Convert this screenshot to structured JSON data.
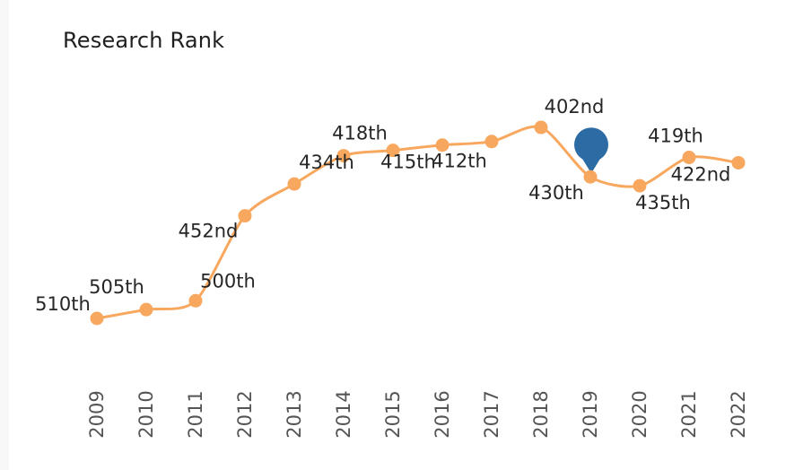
{
  "page": {
    "background": "#ffffff",
    "left_gutter_color": "#f8f8f8"
  },
  "chart_data": {
    "type": "line",
    "title": "Research Rank",
    "xlabel": "",
    "ylabel": "",
    "categories": [
      "2009",
      "2010",
      "2011",
      "2012",
      "2013",
      "2014",
      "2015",
      "2016",
      "2017",
      "2018",
      "2019",
      "2020",
      "2021",
      "2022"
    ],
    "values": [
      510,
      505,
      500,
      452,
      434,
      418,
      415,
      412,
      410,
      402,
      430,
      435,
      419,
      422
    ],
    "points": [
      {
        "year": "2009",
        "value": 510,
        "label": "510th",
        "label_offset": [
          -38,
          -16
        ],
        "pin": false
      },
      {
        "year": "2010",
        "value": 505,
        "label": "505th",
        "label_offset": [
          -33,
          -25
        ],
        "pin": false
      },
      {
        "year": "2011",
        "value": 500,
        "label": "500th",
        "label_offset": [
          36,
          -22
        ],
        "pin": false
      },
      {
        "year": "2012",
        "value": 452,
        "label": "452nd",
        "label_offset": [
          -41,
          17
        ],
        "pin": false
      },
      {
        "year": "2013",
        "value": 434,
        "label": "434th",
        "label_offset": [
          36,
          -24
        ],
        "pin": false
      },
      {
        "year": "2014",
        "value": 418,
        "label": "418th",
        "label_offset": [
          18,
          -25
        ],
        "pin": false
      },
      {
        "year": "2015",
        "value": 415,
        "label": "415th",
        "label_offset": [
          17,
          13
        ],
        "pin": false
      },
      {
        "year": "2016",
        "value": 412,
        "label": "412th",
        "label_offset": [
          19,
          18
        ],
        "pin": false
      },
      {
        "year": "2017",
        "value": 410,
        "label": "",
        "label_offset": [
          0,
          0
        ],
        "pin": false
      },
      {
        "year": "2018",
        "value": 402,
        "label": "402nd",
        "label_offset": [
          37,
          -23
        ],
        "pin": false
      },
      {
        "year": "2019",
        "value": 430,
        "label": "430th",
        "label_offset": [
          -38,
          18
        ],
        "pin": true
      },
      {
        "year": "2020",
        "value": 435,
        "label": "435th",
        "label_offset": [
          26,
          19
        ],
        "pin": false
      },
      {
        "year": "2021",
        "value": 419,
        "label": "419th",
        "label_offset": [
          -15,
          -24
        ],
        "pin": false
      },
      {
        "year": "2022",
        "value": 422,
        "label": "422nd",
        "label_offset": [
          -42,
          13
        ],
        "pin": false
      }
    ],
    "y_axis": {
      "inverted": true,
      "visible": false,
      "approx_range": [
        400,
        515
      ]
    },
    "x_axis": {
      "visible_ticks": true,
      "tick_rotation_deg": -90
    },
    "grid": false,
    "legend": false,
    "line_color": "#f8a75e",
    "marker_color": "#f8a75e",
    "pin_color": "#2c6ba4",
    "label_color": "#262626",
    "axis_label_color": "#545454"
  }
}
